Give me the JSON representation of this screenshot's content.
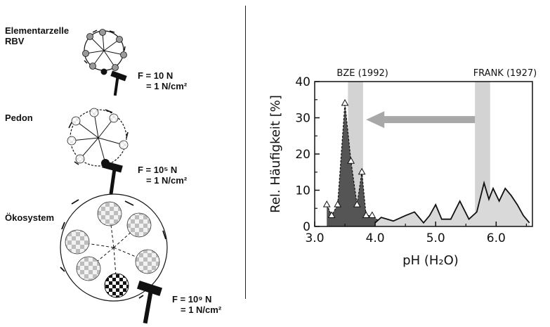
{
  "scales": [
    {
      "id": "rbv",
      "label_line1": "Elementarzelle",
      "label_line2": "RBV",
      "force_line1": "F = 10 N",
      "force_line2": "= 1 N/cm²"
    },
    {
      "id": "pedon",
      "label_line1": "Pedon",
      "label_line2": "",
      "force_line1": "F = 10⁵ N",
      "force_line2": "= 1 N/cm²"
    },
    {
      "id": "oekosystem",
      "label_line1": "Ökosystem",
      "label_line2": "",
      "force_line1": "F = 10⁹ N",
      "force_line2": "= 1 N/cm²"
    }
  ],
  "icons": [
    "hammer-icon",
    "rotation-arrow-icon",
    "particle-sphere-icon"
  ],
  "colors": {
    "bze_fill": "#555555",
    "frank_fill": "#d9d9d9",
    "band": "#d3d3d3",
    "arrow": "#a8a8a8"
  },
  "chart_data": {
    "type": "area",
    "title": "",
    "xlabel": "pH (H₂O)",
    "ylabel": "Rel. Häufigkeit [%]",
    "xlim": [
      3.0,
      6.6
    ],
    "ylim": [
      0,
      40
    ],
    "xticks": [
      3.0,
      4.0,
      5.0,
      6.0
    ],
    "xtick_labels": [
      "3.0",
      "4.0",
      "5.0",
      "6.0"
    ],
    "yticks": [
      0,
      10,
      20,
      30,
      40
    ],
    "ytick_labels": [
      "0",
      "10",
      "20",
      "30",
      "40"
    ],
    "grid": false,
    "annotations": [
      {
        "text": "BZE (1992)",
        "band": [
          3.55,
          3.8
        ]
      },
      {
        "text": "FRANK (1927)",
        "band": [
          5.65,
          5.9
        ]
      }
    ],
    "arrow": {
      "from_x": 5.65,
      "to_x": 3.85,
      "y": 29.5
    },
    "series": [
      {
        "name": "BZE (1992)",
        "style": "dashed-filled-triangles",
        "x": [
          3.2,
          3.28,
          3.38,
          3.5,
          3.6,
          3.7,
          3.78,
          3.85,
          3.95,
          4.1,
          4.3,
          4.5
        ],
        "y": [
          6,
          3,
          6,
          34,
          18,
          6,
          15,
          3,
          3,
          1,
          1.5,
          3
        ]
      },
      {
        "name": "FRANK (1927)",
        "style": "solid-filled",
        "x": [
          4.0,
          4.1,
          4.3,
          4.5,
          4.65,
          4.8,
          4.9,
          5.0,
          5.1,
          5.25,
          5.4,
          5.55,
          5.68,
          5.8,
          5.88,
          5.95,
          6.05,
          6.15,
          6.25,
          6.35,
          6.45,
          6.55
        ],
        "y": [
          1,
          2.5,
          1.5,
          3,
          4,
          1,
          3,
          6,
          2,
          2,
          7,
          2,
          4,
          12,
          7.5,
          10.5,
          7,
          10.5,
          8.5,
          6,
          3,
          1
        ]
      }
    ]
  }
}
